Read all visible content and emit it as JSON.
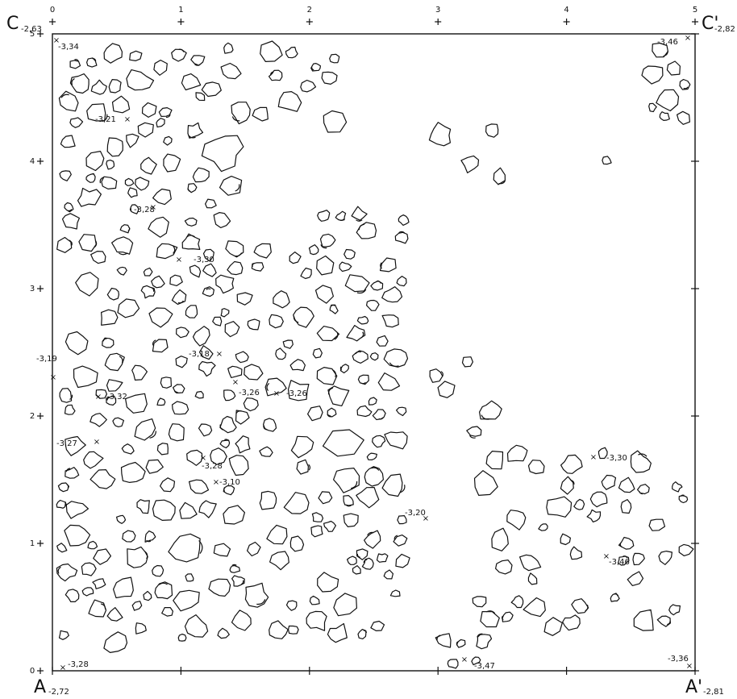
{
  "corners": {
    "top_left": {
      "letter": "C",
      "elevation": "-2,63"
    },
    "top_right": {
      "letter": "C'",
      "elevation": "-2,82"
    },
    "bottom_left": {
      "letter": "A",
      "elevation": "-2,72"
    },
    "bottom_right": {
      "letter": "A'",
      "elevation": "-2,81"
    }
  },
  "x_axis": [
    0,
    1,
    2,
    3,
    4,
    5
  ],
  "y_axis": [
    0,
    1,
    2,
    3,
    4,
    5
  ],
  "elevations": [
    "-3,34",
    "-3,21",
    "-3,28",
    "-3,30",
    "-3,19",
    "-3,18",
    "-3,26",
    "-3,26",
    "-3,32",
    "-3,27",
    "-3,28",
    "-3,10",
    "-3,20",
    "-3,30",
    "-3,46",
    "-3,46",
    "-3,36",
    "-3,47",
    "-3,28"
  ]
}
